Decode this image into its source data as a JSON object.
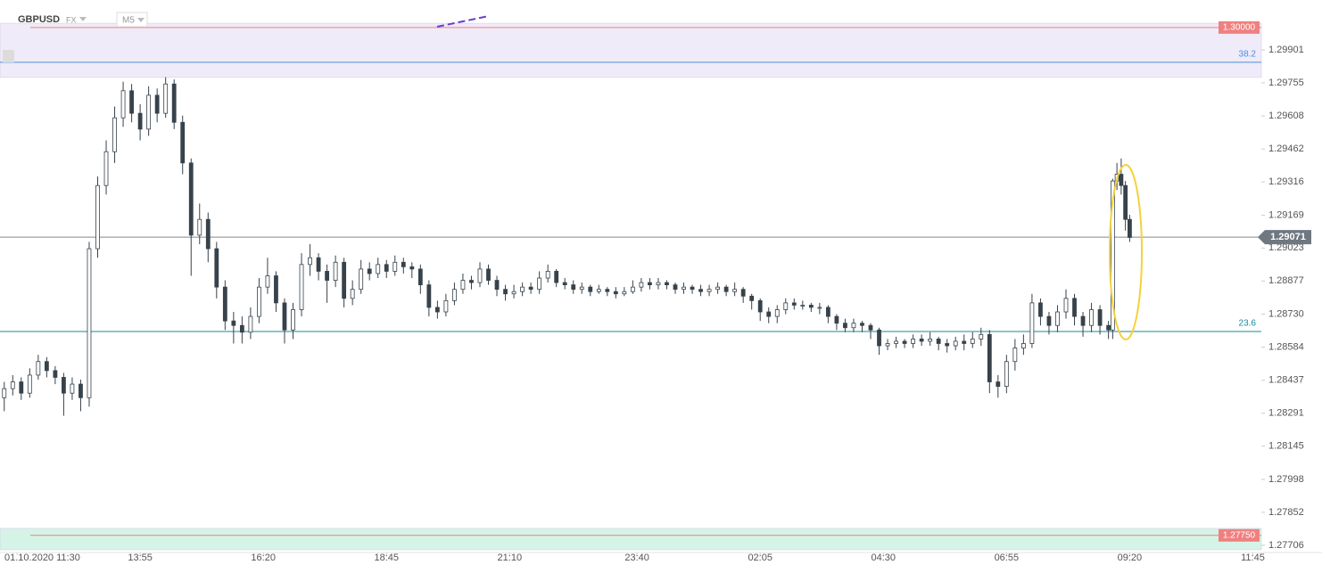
{
  "header": {
    "symbol": "GBPUSD",
    "market": "FX",
    "timeframe": "M5"
  },
  "chart_data": {
    "type": "candlestick",
    "x": [
      0,
      2,
      4,
      6,
      8,
      10,
      12,
      14,
      16,
      18,
      20,
      22,
      24,
      26,
      28,
      30,
      32,
      34,
      36,
      38,
      40,
      42,
      44,
      46,
      48,
      50,
      52,
      54,
      56,
      58,
      60,
      62,
      64,
      66,
      68,
      70,
      72,
      74,
      76,
      78,
      80,
      82,
      84,
      86,
      88,
      90,
      92,
      94,
      96,
      98,
      100,
      102,
      104,
      106,
      108,
      110,
      112,
      114,
      116,
      118,
      120,
      122,
      124,
      126,
      128,
      130,
      132,
      134,
      136,
      138,
      140,
      142,
      144,
      146,
      148,
      150,
      152,
      154,
      156,
      158,
      160,
      162,
      164,
      166,
      168,
      170,
      172,
      174,
      176,
      178,
      180,
      182,
      184,
      186,
      188,
      190,
      192,
      194,
      196,
      198,
      200,
      202,
      204,
      206,
      208,
      210,
      212,
      214,
      216,
      218,
      220,
      222,
      224,
      226,
      228,
      230,
      232,
      234,
      236,
      238,
      240,
      242,
      244,
      246,
      248,
      250,
      252,
      254,
      256,
      258,
      260,
      261,
      262,
      263,
      264,
      265
    ],
    "open": [
      1.2836,
      1.284,
      1.2843,
      1.2838,
      1.2846,
      1.2852,
      1.2848,
      1.2845,
      1.2838,
      1.2842,
      1.2836,
      1.2902,
      1.293,
      1.2945,
      1.296,
      1.2972,
      1.2962,
      1.2955,
      1.297,
      1.2962,
      1.2975,
      1.2958,
      1.294,
      1.2908,
      1.2915,
      1.2902,
      1.2885,
      1.287,
      1.2868,
      1.2865,
      1.2872,
      1.2885,
      1.289,
      1.2878,
      1.2866,
      1.2875,
      1.2895,
      1.2898,
      1.2892,
      1.2888,
      1.2896,
      1.288,
      1.2884,
      1.2893,
      1.2891,
      1.2895,
      1.2892,
      1.2896,
      1.2894,
      1.2893,
      1.2886,
      1.2876,
      1.2874,
      1.2879,
      1.2884,
      1.2888,
      1.2887,
      1.2893,
      1.2888,
      1.2884,
      1.2882,
      1.2883,
      1.2885,
      1.2884,
      1.2889,
      1.2892,
      1.2887,
      1.2886,
      1.2884,
      1.2885,
      1.2883,
      1.2884,
      1.2883,
      1.2882,
      1.2883,
      1.2885,
      1.2887,
      1.2886,
      1.2887,
      1.2886,
      1.2884,
      1.2885,
      1.2884,
      1.2883,
      1.2884,
      1.2885,
      1.2883,
      1.2884,
      1.2881,
      1.2879,
      1.2874,
      1.2872,
      1.2875,
      1.2878,
      1.2877,
      1.2877,
      1.2876,
      1.2876,
      1.2872,
      1.2869,
      1.2867,
      1.2869,
      1.2868,
      1.2866,
      1.2859,
      1.286,
      1.2861,
      1.286,
      1.2862,
      1.2861,
      1.2862,
      1.286,
      1.2859,
      1.2861,
      1.286,
      1.2862,
      1.2864,
      1.2843,
      1.2841,
      1.2852,
      1.2858,
      1.286,
      1.2878,
      1.2872,
      1.2868,
      1.2874,
      1.288,
      1.2872,
      1.2868,
      1.2875,
      1.2868,
      1.2866,
      1.2932,
      1.2935,
      1.293,
      1.2915
    ],
    "high": [
      1.2843,
      1.2846,
      1.2845,
      1.2849,
      1.2855,
      1.2854,
      1.285,
      1.2847,
      1.2845,
      1.2844,
      1.2905,
      1.2934,
      1.295,
      1.2965,
      1.2976,
      1.2975,
      1.2966,
      1.2974,
      1.2973,
      1.2978,
      1.2977,
      1.2961,
      1.2942,
      1.2922,
      1.2918,
      1.2905,
      1.2888,
      1.2874,
      1.2872,
      1.2876,
      1.2889,
      1.2898,
      1.2892,
      1.288,
      1.2878,
      1.29,
      1.2904,
      1.29,
      1.2895,
      1.2899,
      1.2898,
      1.2888,
      1.2897,
      1.2896,
      1.2898,
      1.2897,
      1.2899,
      1.2898,
      1.2896,
      1.2895,
      1.2888,
      1.2879,
      1.2882,
      1.2887,
      1.2891,
      1.289,
      1.2896,
      1.2895,
      1.289,
      1.2886,
      1.2886,
      1.2887,
      1.2887,
      1.2892,
      1.2895,
      1.2893,
      1.2889,
      1.2888,
      1.2887,
      1.2886,
      1.2886,
      1.2885,
      1.2885,
      1.2885,
      1.2888,
      1.2889,
      1.2889,
      1.2889,
      1.2888,
      1.2887,
      1.2887,
      1.2886,
      1.2886,
      1.2886,
      1.2887,
      1.2886,
      1.2887,
      1.2885,
      1.2882,
      1.288,
      1.2876,
      1.2877,
      1.288,
      1.288,
      1.2879,
      1.2878,
      1.2878,
      1.2877,
      1.2873,
      1.2871,
      1.2871,
      1.287,
      1.2869,
      1.2867,
      1.2862,
      1.2863,
      1.2862,
      1.2864,
      1.2864,
      1.2865,
      1.2863,
      1.2862,
      1.2863,
      1.2864,
      1.2865,
      1.2867,
      1.2866,
      1.2846,
      1.2855,
      1.2862,
      1.2864,
      1.2882,
      1.288,
      1.2874,
      1.2877,
      1.2884,
      1.2882,
      1.2874,
      1.2878,
      1.2877,
      1.287,
      1.2933,
      1.294,
      1.2942,
      1.2932,
      1.2917
    ],
    "low": [
      1.283,
      1.2837,
      1.2835,
      1.2836,
      1.2844,
      1.2845,
      1.2842,
      1.2828,
      1.2835,
      1.283,
      1.2832,
      1.2898,
      1.2926,
      1.294,
      1.2956,
      1.2958,
      1.295,
      1.2952,
      1.2958,
      1.296,
      1.2955,
      1.2935,
      1.289,
      1.2904,
      1.2896,
      1.288,
      1.2866,
      1.286,
      1.286,
      1.2862,
      1.2869,
      1.2882,
      1.2874,
      1.286,
      1.2862,
      1.2872,
      1.289,
      1.2888,
      1.2878,
      1.2885,
      1.2876,
      1.2877,
      1.2882,
      1.2888,
      1.2889,
      1.2889,
      1.289,
      1.2891,
      1.2889,
      1.2882,
      1.2872,
      1.2871,
      1.2872,
      1.2877,
      1.2882,
      1.2884,
      1.2885,
      1.2886,
      1.2881,
      1.2879,
      1.288,
      1.2881,
      1.2882,
      1.2882,
      1.2887,
      1.2885,
      1.2884,
      1.2882,
      1.2882,
      1.2881,
      1.2882,
      1.2881,
      1.288,
      1.2881,
      1.2882,
      1.2883,
      1.2884,
      1.2884,
      1.2884,
      1.2882,
      1.2882,
      1.2882,
      1.2881,
      1.2881,
      1.2882,
      1.2881,
      1.2881,
      1.2878,
      1.2875,
      1.287,
      1.2869,
      1.2869,
      1.2873,
      1.2875,
      1.2875,
      1.2874,
      1.2873,
      1.2869,
      1.2866,
      1.2865,
      1.2865,
      1.2865,
      1.2862,
      1.2855,
      1.2857,
      1.2858,
      1.2858,
      1.2858,
      1.2859,
      1.2859,
      1.2857,
      1.2856,
      1.2857,
      1.2857,
      1.2858,
      1.2859,
      1.2838,
      1.2836,
      1.2838,
      1.2848,
      1.2855,
      1.2858,
      1.2868,
      1.2864,
      1.2865,
      1.2871,
      1.2868,
      1.2863,
      1.2865,
      1.2864,
      1.2862,
      1.2862,
      1.2928,
      1.2926,
      1.291,
      1.2905
    ],
    "close": [
      1.284,
      1.2843,
      1.2838,
      1.2846,
      1.2852,
      1.2848,
      1.2845,
      1.2838,
      1.2842,
      1.2836,
      1.2902,
      1.293,
      1.2945,
      1.296,
      1.2972,
      1.2962,
      1.2955,
      1.297,
      1.2962,
      1.2975,
      1.2958,
      1.294,
      1.2908,
      1.2915,
      1.2902,
      1.2885,
      1.287,
      1.2868,
      1.2865,
      1.2872,
      1.2885,
      1.289,
      1.2878,
      1.2866,
      1.2875,
      1.2895,
      1.2898,
      1.2892,
      1.2888,
      1.2896,
      1.288,
      1.2884,
      1.2893,
      1.2891,
      1.2895,
      1.2892,
      1.2896,
      1.2894,
      1.2893,
      1.2886,
      1.2876,
      1.2874,
      1.2879,
      1.2884,
      1.2888,
      1.2887,
      1.2893,
      1.2888,
      1.2884,
      1.2882,
      1.2883,
      1.2885,
      1.2884,
      1.2889,
      1.2892,
      1.2887,
      1.2886,
      1.2884,
      1.2885,
      1.2883,
      1.2884,
      1.2883,
      1.2882,
      1.2883,
      1.2885,
      1.2887,
      1.2886,
      1.2887,
      1.2886,
      1.2884,
      1.2885,
      1.2884,
      1.2883,
      1.2884,
      1.2885,
      1.2883,
      1.2884,
      1.2881,
      1.2879,
      1.2874,
      1.2872,
      1.2875,
      1.2878,
      1.2877,
      1.2877,
      1.2876,
      1.2876,
      1.2872,
      1.2869,
      1.2867,
      1.2869,
      1.2868,
      1.2866,
      1.2859,
      1.286,
      1.2861,
      1.286,
      1.2862,
      1.2861,
      1.2862,
      1.286,
      1.2859,
      1.2861,
      1.286,
      1.2862,
      1.2864,
      1.2843,
      1.2841,
      1.2852,
      1.2858,
      1.286,
      1.2878,
      1.2872,
      1.2868,
      1.2874,
      1.288,
      1.2872,
      1.2868,
      1.2875,
      1.2868,
      1.2866,
      1.2932,
      1.2935,
      1.293,
      1.2915,
      1.2907
    ],
    "up_color": "#ffffff",
    "down_color": "#37424b",
    "wick_color": "#37424b",
    "xlim": [
      -1,
      296
    ],
    "ylim": [
      1.27674,
      1.30122
    ],
    "xticks": [
      {
        "value": 3,
        "label": "01.10.2020 11:30"
      },
      {
        "value": 32,
        "label": "13:55"
      },
      {
        "value": 61,
        "label": "16:20"
      },
      {
        "value": 90,
        "label": "18:45"
      },
      {
        "value": 119,
        "label": "21:10"
      },
      {
        "value": 149,
        "label": "23:40"
      },
      {
        "value": 178,
        "label": "02:05"
      },
      {
        "value": 207,
        "label": "04:30"
      },
      {
        "value": 236,
        "label": "06:55"
      },
      {
        "value": 265,
        "label": "09:20"
      },
      {
        "value": 294,
        "label": "11:45"
      }
    ],
    "yticks": [
      1.29901,
      1.29755,
      1.29608,
      1.29462,
      1.29316,
      1.29169,
      1.29023,
      1.28877,
      {
        "value": 1.2873,
        "label": "1.28730"
      },
      1.28584,
      1.28437,
      1.28291,
      1.28145,
      1.27998,
      1.27852,
      1.27706
    ],
    "zones": [
      {
        "from": 1.29779,
        "to": 1.30019,
        "color": "#efebf8"
      },
      {
        "from": 1.27686,
        "to": 1.27781,
        "color": "#d5f3e6"
      }
    ],
    "price_lines": [
      {
        "value": 1.3,
        "label": "1.30000",
        "color": "#f08080"
      },
      {
        "value": 1.2775,
        "label": "1.27750",
        "color": "#f08080"
      }
    ],
    "fib_levels": [
      {
        "name": "38.2",
        "value": 1.29846,
        "color": "#4a8fe0"
      },
      {
        "name": "23.6",
        "value": 1.28653,
        "color": "#178a98"
      }
    ],
    "last_price": 1.29071
  }
}
